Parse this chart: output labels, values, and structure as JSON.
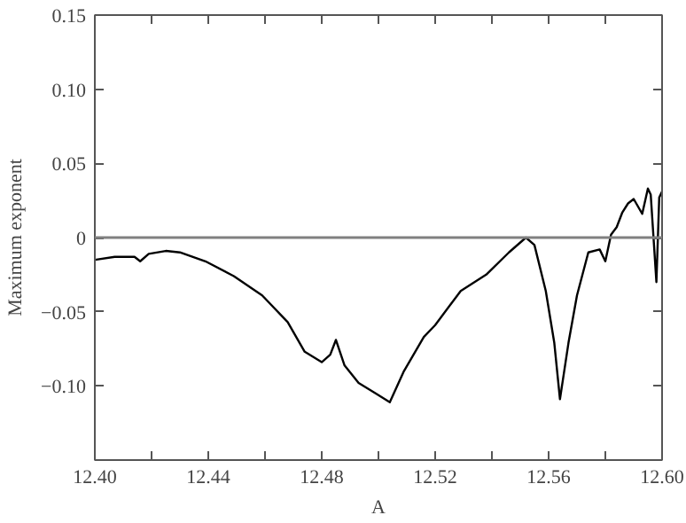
{
  "chart_data": {
    "type": "line",
    "xlabel": "A",
    "ylabel": "Maximum exponent",
    "xlim": [
      12.4,
      12.6
    ],
    "ylim": [
      -0.15,
      0.15
    ],
    "xticks": [
      {
        "value": 12.4,
        "label": "12.40"
      },
      {
        "value": 12.42,
        "label": null
      },
      {
        "value": 12.44,
        "label": "12.44"
      },
      {
        "value": 12.46,
        "label": null
      },
      {
        "value": 12.48,
        "label": "12.48"
      },
      {
        "value": 12.5,
        "label": null
      },
      {
        "value": 12.52,
        "label": "12.52"
      },
      {
        "value": 12.54,
        "label": null
      },
      {
        "value": 12.56,
        "label": "12.56"
      },
      {
        "value": 12.58,
        "label": null
      },
      {
        "value": 12.6,
        "label": "12.60"
      }
    ],
    "yticks": [
      {
        "value": -0.1,
        "label": "−0.10"
      },
      {
        "value": -0.05,
        "label": "−0.05"
      },
      0,
      {
        "value": 0.05,
        "label": "0.05"
      },
      {
        "value": 0.1,
        "label": "0.10"
      },
      {
        "value": 0.15,
        "label": "0.15"
      }
    ],
    "grid": false,
    "marker": "none",
    "line_style": "solid",
    "ref_lines": [
      {
        "axis": "y",
        "value": 0,
        "color": "#808080"
      }
    ],
    "series": [
      {
        "color": "#000000",
        "x": [
          12.4,
          12.407,
          12.414,
          12.416,
          12.419,
          12.425,
          12.43,
          12.439,
          12.449,
          12.459,
          12.468,
          12.474,
          12.48,
          12.483,
          12.485,
          12.488,
          12.493,
          12.499,
          12.504,
          12.509,
          12.516,
          12.52,
          12.529,
          12.538,
          12.546,
          12.552,
          12.555,
          12.559,
          12.562,
          12.564,
          12.567,
          12.57,
          12.574,
          12.578,
          12.58,
          12.582,
          12.584,
          12.586,
          12.588,
          12.59,
          12.593,
          12.595,
          12.596,
          12.598,
          12.599,
          12.6
        ],
        "values": [
          -0.015,
          -0.013,
          -0.013,
          -0.016,
          -0.011,
          -0.009,
          -0.01,
          -0.016,
          -0.026,
          -0.039,
          -0.057,
          -0.077,
          -0.084,
          -0.079,
          -0.069,
          -0.086,
          -0.098,
          -0.105,
          -0.111,
          -0.09,
          -0.067,
          -0.059,
          -0.036,
          -0.025,
          -0.01,
          0.0,
          -0.005,
          -0.036,
          -0.071,
          -0.109,
          -0.071,
          -0.039,
          -0.01,
          -0.008,
          -0.016,
          0.002,
          0.007,
          0.017,
          0.023,
          0.026,
          0.016,
          0.033,
          0.029,
          -0.03,
          0.027,
          0.031
        ]
      }
    ]
  }
}
